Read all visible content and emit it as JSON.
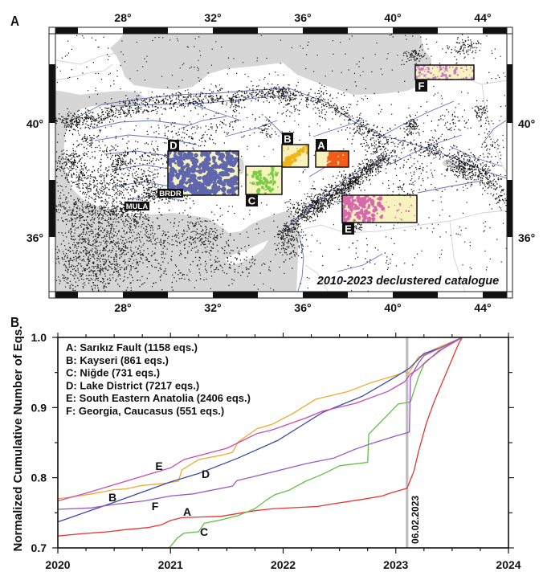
{
  "panel_a": {
    "label": "A",
    "lon_ticks": [
      "28°",
      "32°",
      "36°",
      "40°",
      "44°"
    ],
    "lat_ticks": [
      "40°",
      "36°"
    ],
    "caption": "2010-2023 declustered catalogue",
    "stations": {
      "mula": "MULA",
      "brdr": "BRDR"
    },
    "regions": [
      {
        "id": "A",
        "color": "#f45c16"
      },
      {
        "id": "B",
        "color": "#f1b31a"
      },
      {
        "id": "C",
        "color": "#7acc45"
      },
      {
        "id": "D",
        "color": "#5e66ad"
      },
      {
        "id": "E",
        "color": "#d768ac"
      },
      {
        "id": "F",
        "color": "#c47ac4"
      }
    ],
    "colors": {
      "sea": "#d6d6d6",
      "land": "#ffffff",
      "fault": "#4b59b3",
      "earthquake": "#151515",
      "region_background": "#f7f2be",
      "border": "#d2d2d2"
    }
  },
  "panel_b": {
    "label": "B"
  },
  "chart_data": {
    "type": "line",
    "title": "",
    "xlabel": "",
    "ylabel": "Normalized Cumulative Number of Eqs.",
    "xlim": [
      2020,
      2024
    ],
    "ylim": [
      0.7,
      1.0
    ],
    "x_ticks": [
      "2020",
      "2021",
      "2022",
      "2023",
      "2024"
    ],
    "y_ticks": [
      "0.7",
      "0.8",
      "0.9",
      "1.0"
    ],
    "grid": false,
    "legend_position": "top-left",
    "legend": [
      "A: Sarıkız Fault (1158 eqs.)",
      "B: Kayseri (861 eqs.)",
      "C: Niğde (731 eqs.)",
      "D: Lake District (7217 eqs.)",
      "E: South Eastern Anatolia (2406 eqs.)",
      "F: Georgia, Caucasus (551 eqs.)"
    ],
    "event": {
      "label": "06.02.2023",
      "x": 2023.1,
      "color": "#bdbdbd"
    },
    "series": [
      {
        "name": "A",
        "color": "#e8352f",
        "points": [
          [
            2020.0,
            0.717
          ],
          [
            2020.2,
            0.72
          ],
          [
            2020.45,
            0.723
          ],
          [
            2020.6,
            0.726
          ],
          [
            2020.8,
            0.729
          ],
          [
            2020.92,
            0.733
          ],
          [
            2021.0,
            0.739
          ],
          [
            2021.1,
            0.743
          ],
          [
            2021.45,
            0.745
          ],
          [
            2021.6,
            0.749
          ],
          [
            2021.75,
            0.753
          ],
          [
            2021.92,
            0.756
          ],
          [
            2022.3,
            0.759
          ],
          [
            2022.45,
            0.763
          ],
          [
            2022.7,
            0.769
          ],
          [
            2022.88,
            0.774
          ],
          [
            2022.95,
            0.778
          ],
          [
            2023.1,
            0.785
          ],
          [
            2023.16,
            0.809
          ],
          [
            2023.2,
            0.836
          ],
          [
            2023.27,
            0.877
          ],
          [
            2023.34,
            0.908
          ],
          [
            2023.47,
            0.958
          ],
          [
            2023.56,
            0.992
          ],
          [
            2023.59,
            1.0
          ]
        ]
      },
      {
        "name": "B",
        "color": "#f0a92a",
        "points": [
          [
            2020.0,
            0.77
          ],
          [
            2020.1,
            0.772
          ],
          [
            2020.3,
            0.777
          ],
          [
            2020.5,
            0.783
          ],
          [
            2020.6,
            0.784
          ],
          [
            2020.75,
            0.789
          ],
          [
            2020.95,
            0.792
          ],
          [
            2021.07,
            0.795
          ],
          [
            2021.1,
            0.811
          ],
          [
            2021.25,
            0.826
          ],
          [
            2021.45,
            0.832
          ],
          [
            2021.55,
            0.836
          ],
          [
            2021.6,
            0.851
          ],
          [
            2021.77,
            0.87
          ],
          [
            2021.9,
            0.876
          ],
          [
            2022.08,
            0.891
          ],
          [
            2022.29,
            0.912
          ],
          [
            2022.58,
            0.923
          ],
          [
            2022.77,
            0.935
          ],
          [
            2023.0,
            0.946
          ],
          [
            2023.08,
            0.951
          ],
          [
            2023.11,
            0.948
          ],
          [
            2023.2,
            0.972
          ],
          [
            2023.27,
            0.977
          ],
          [
            2023.34,
            0.983
          ],
          [
            2023.59,
            1.0
          ]
        ]
      },
      {
        "name": "C",
        "color": "#63bf45",
        "points": [
          [
            2020.99,
            0.7
          ],
          [
            2021.03,
            0.708
          ],
          [
            2021.06,
            0.714
          ],
          [
            2021.12,
            0.721
          ],
          [
            2021.25,
            0.723
          ],
          [
            2021.3,
            0.735
          ],
          [
            2021.45,
            0.74
          ],
          [
            2021.6,
            0.746
          ],
          [
            2021.75,
            0.756
          ],
          [
            2021.85,
            0.768
          ],
          [
            2021.93,
            0.776
          ],
          [
            2022.05,
            0.782
          ],
          [
            2022.2,
            0.795
          ],
          [
            2022.35,
            0.805
          ],
          [
            2022.5,
            0.817
          ],
          [
            2022.65,
            0.82
          ],
          [
            2022.75,
            0.822
          ],
          [
            2022.76,
            0.862
          ],
          [
            2022.9,
            0.885
          ],
          [
            2023.02,
            0.905
          ],
          [
            2023.13,
            0.908
          ],
          [
            2023.2,
            0.943
          ],
          [
            2023.25,
            0.962
          ],
          [
            2023.38,
            0.981
          ],
          [
            2023.59,
            1.0
          ]
        ]
      },
      {
        "name": "D",
        "color": "#3b4ba6",
        "points": [
          [
            2020.0,
            0.737
          ],
          [
            2020.5,
            0.765
          ],
          [
            2021.0,
            0.794
          ],
          [
            2021.25,
            0.806
          ],
          [
            2021.6,
            0.828
          ],
          [
            2021.95,
            0.853
          ],
          [
            2022.2,
            0.878
          ],
          [
            2022.35,
            0.893
          ],
          [
            2022.7,
            0.916
          ],
          [
            2022.99,
            0.943
          ],
          [
            2023.08,
            0.952
          ],
          [
            2023.12,
            0.956
          ],
          [
            2023.25,
            0.977
          ],
          [
            2023.41,
            0.986
          ],
          [
            2023.59,
            1.0
          ]
        ]
      },
      {
        "name": "E",
        "color": "#c94bb2",
        "points": [
          [
            2020.0,
            0.767
          ],
          [
            2020.25,
            0.778
          ],
          [
            2020.5,
            0.79
          ],
          [
            2020.77,
            0.803
          ],
          [
            2021.0,
            0.814
          ],
          [
            2021.12,
            0.826
          ],
          [
            2021.5,
            0.842
          ],
          [
            2021.77,
            0.863
          ],
          [
            2021.9,
            0.868
          ],
          [
            2022.2,
            0.885
          ],
          [
            2022.35,
            0.895
          ],
          [
            2022.64,
            0.906
          ],
          [
            2022.93,
            0.923
          ],
          [
            2023.08,
            0.937
          ],
          [
            2023.13,
            0.948
          ],
          [
            2023.2,
            0.955
          ],
          [
            2023.27,
            0.966
          ],
          [
            2023.41,
            0.983
          ],
          [
            2023.59,
            1.0
          ]
        ]
      },
      {
        "name": "F",
        "color": "#9a56c4",
        "points": [
          [
            2020.0,
            0.755
          ],
          [
            2020.3,
            0.757
          ],
          [
            2020.5,
            0.762
          ],
          [
            2020.77,
            0.767
          ],
          [
            2021.0,
            0.774
          ],
          [
            2021.2,
            0.777
          ],
          [
            2021.55,
            0.788
          ],
          [
            2021.59,
            0.796
          ],
          [
            2021.9,
            0.808
          ],
          [
            2022.2,
            0.82
          ],
          [
            2022.45,
            0.828
          ],
          [
            2022.63,
            0.84
          ],
          [
            2022.77,
            0.848
          ],
          [
            2022.99,
            0.859
          ],
          [
            2023.12,
            0.865
          ],
          [
            2023.13,
            0.943
          ],
          [
            2023.2,
            0.963
          ],
          [
            2023.25,
            0.974
          ],
          [
            2023.59,
            1.0
          ]
        ]
      }
    ]
  }
}
